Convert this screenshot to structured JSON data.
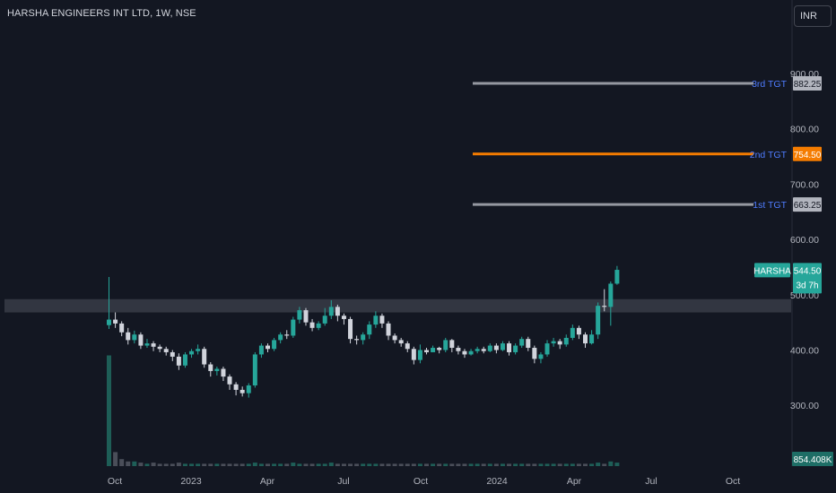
{
  "header": {
    "title": "HARSHA ENGINEERS INT LTD, 1W, NSE",
    "currency": "INR"
  },
  "colors": {
    "up": "#26a69a",
    "down": "#d1d4dc",
    "grid_bg": "#131722",
    "target_gray": "#9598a1",
    "target_orange": "#f57c00",
    "label_blue": "#2962ff",
    "zone": "#363a45"
  },
  "chart_data": {
    "type": "candlestick",
    "ylim": [
      220,
      935
    ],
    "y_ticks": [
      "300.00",
      "400.00",
      "500.00",
      "600.00",
      "700.00",
      "800.00",
      "900.00"
    ],
    "x_ticks": [
      "Oct",
      "2023",
      "Apr",
      "Jul",
      "Oct",
      "2024",
      "Apr",
      "Jul",
      "Oct"
    ],
    "symbol": "HARSHA",
    "last_price": "544.50",
    "countdown": "3d 7h",
    "volume_label": "854.408K",
    "zone": {
      "low": 468,
      "high": 492
    },
    "targets": [
      {
        "name": "3rd TGT",
        "value": "882.25",
        "color": "gray"
      },
      {
        "name": "2nd TGT",
        "value": "754.50",
        "color": "orange"
      },
      {
        "name": "1st TGT",
        "value": "663.25",
        "color": "gray"
      }
    ],
    "candles": [
      [
        445,
        455,
        532,
        438
      ],
      [
        455,
        448,
        468,
        440
      ],
      [
        448,
        432,
        452,
        425
      ],
      [
        432,
        418,
        440,
        410
      ],
      [
        418,
        428,
        435,
        412
      ],
      [
        428,
        408,
        432,
        402
      ],
      [
        408,
        412,
        420,
        404
      ],
      [
        412,
        406,
        416,
        398
      ],
      [
        406,
        402,
        410,
        396
      ],
      [
        402,
        396,
        406,
        390
      ],
      [
        396,
        388,
        400,
        380
      ],
      [
        388,
        372,
        394,
        364
      ],
      [
        372,
        392,
        396,
        368
      ],
      [
        392,
        398,
        402,
        386
      ],
      [
        398,
        402,
        410,
        392
      ],
      [
        402,
        374,
        406,
        368
      ],
      [
        374,
        362,
        378,
        352
      ],
      [
        362,
        366,
        370,
        354
      ],
      [
        366,
        352,
        370,
        344
      ],
      [
        352,
        338,
        356,
        328
      ],
      [
        338,
        328,
        342,
        318
      ],
      [
        328,
        322,
        334,
        316
      ],
      [
        322,
        336,
        340,
        314
      ],
      [
        336,
        392,
        396,
        332
      ],
      [
        392,
        408,
        412,
        386
      ],
      [
        408,
        402,
        412,
        396
      ],
      [
        402,
        418,
        422,
        398
      ],
      [
        418,
        428,
        432,
        412
      ],
      [
        428,
        426,
        436,
        420
      ],
      [
        426,
        455,
        460,
        422
      ],
      [
        455,
        472,
        478,
        448
      ],
      [
        472,
        450,
        476,
        444
      ],
      [
        450,
        440,
        456,
        434
      ],
      [
        440,
        448,
        452,
        436
      ],
      [
        448,
        462,
        476,
        444
      ],
      [
        462,
        478,
        490,
        456
      ],
      [
        478,
        462,
        482,
        452
      ],
      [
        462,
        456,
        466,
        446
      ],
      [
        456,
        420,
        460,
        412
      ],
      [
        420,
        418,
        426,
        410
      ],
      [
        418,
        428,
        432,
        410
      ],
      [
        428,
        446,
        452,
        420
      ],
      [
        446,
        462,
        470,
        440
      ],
      [
        462,
        448,
        466,
        440
      ],
      [
        448,
        426,
        452,
        418
      ],
      [
        426,
        418,
        430,
        412
      ],
      [
        418,
        412,
        422,
        406
      ],
      [
        412,
        402,
        416,
        396
      ],
      [
        402,
        382,
        406,
        374
      ],
      [
        382,
        400,
        410,
        376
      ],
      [
        400,
        396,
        404,
        392
      ],
      [
        396,
        404,
        408,
        396
      ],
      [
        404,
        400,
        406,
        394
      ],
      [
        400,
        418,
        422,
        396
      ],
      [
        418,
        404,
        420,
        396
      ],
      [
        404,
        398,
        408,
        392
      ],
      [
        398,
        392,
        402,
        386
      ],
      [
        392,
        398,
        402,
        390
      ],
      [
        398,
        402,
        406,
        394
      ],
      [
        402,
        398,
        406,
        394
      ],
      [
        398,
        408,
        412,
        396
      ],
      [
        408,
        400,
        412,
        394
      ],
      [
        400,
        412,
        416,
        398
      ],
      [
        412,
        396,
        416,
        390
      ],
      [
        396,
        408,
        412,
        392
      ],
      [
        408,
        420,
        424,
        404
      ],
      [
        420,
        404,
        424,
        398
      ],
      [
        404,
        384,
        408,
        376
      ],
      [
        384,
        392,
        396,
        376
      ],
      [
        392,
        412,
        418,
        388
      ],
      [
        412,
        416,
        422,
        406
      ],
      [
        416,
        410,
        420,
        402
      ],
      [
        410,
        422,
        428,
        406
      ],
      [
        422,
        440,
        446,
        418
      ],
      [
        440,
        428,
        444,
        420
      ],
      [
        428,
        412,
        432,
        404
      ],
      [
        412,
        428,
        436,
        410
      ],
      [
        428,
        480,
        486,
        420
      ],
      [
        480,
        478,
        510,
        470
      ],
      [
        478,
        520,
        524,
        444
      ],
      [
        520,
        545,
        552,
        518
      ]
    ],
    "volumes": [
      0.95,
      0.12,
      0.06,
      0.04,
      0.04,
      0.03,
      0.02,
      0.03,
      0.02,
      0.02,
      0.02,
      0.03,
      0.02,
      0.02,
      0.02,
      0.02,
      0.02,
      0.02,
      0.02,
      0.02,
      0.02,
      0.02,
      0.02,
      0.03,
      0.02,
      0.02,
      0.02,
      0.02,
      0.02,
      0.03,
      0.02,
      0.02,
      0.02,
      0.02,
      0.02,
      0.03,
      0.02,
      0.02,
      0.02,
      0.02,
      0.02,
      0.02,
      0.02,
      0.02,
      0.02,
      0.02,
      0.02,
      0.02,
      0.02,
      0.02,
      0.02,
      0.02,
      0.02,
      0.02,
      0.02,
      0.02,
      0.02,
      0.02,
      0.02,
      0.02,
      0.02,
      0.02,
      0.02,
      0.02,
      0.02,
      0.02,
      0.02,
      0.02,
      0.02,
      0.02,
      0.02,
      0.02,
      0.02,
      0.02,
      0.02,
      0.02,
      0.02,
      0.03,
      0.02,
      0.04,
      0.03
    ]
  }
}
